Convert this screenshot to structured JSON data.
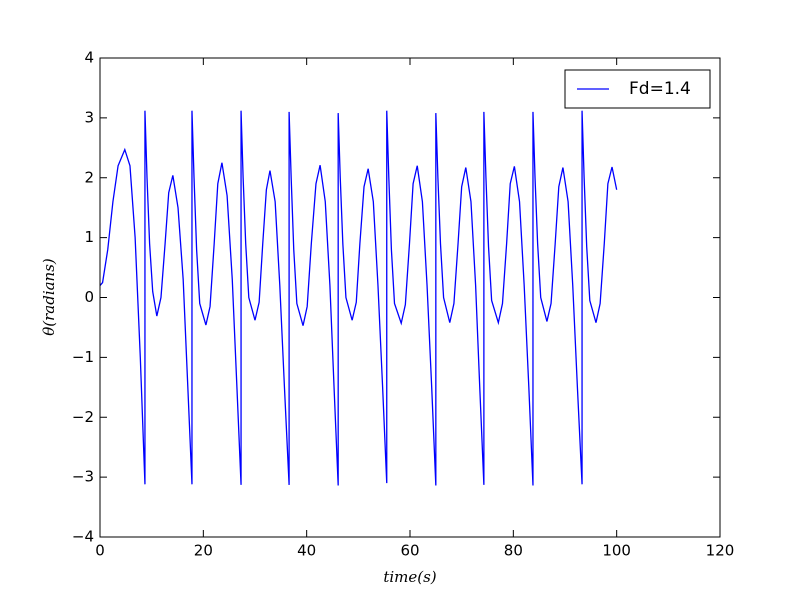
{
  "chart_data": {
    "type": "line",
    "xlabel": "time(s)",
    "ylabel": "θ(radians)",
    "x": [
      0,
      0.5,
      1.5,
      2.5,
      3.5,
      4.8,
      5.8,
      6.8,
      7.8,
      8.7,
      8.7,
      9.1,
      9.6,
      10.2,
      11.0,
      11.8,
      12.6,
      13.3,
      14.1,
      15.1,
      16.1,
      17.0,
      17.8,
      17.8,
      18.2,
      18.7,
      19.3,
      20.5,
      21.3,
      22.1,
      22.8,
      23.6,
      24.6,
      25.6,
      26.5,
      27.3,
      27.3,
      27.7,
      28.2,
      28.8,
      30.0,
      30.8,
      31.5,
      32.2,
      32.9,
      33.9,
      34.8,
      35.7,
      36.6,
      36.6,
      37.0,
      37.5,
      38.1,
      39.3,
      40.1,
      40.9,
      41.8,
      42.6,
      43.6,
      44.5,
      45.3,
      46.1,
      46.1,
      46.5,
      47.0,
      47.6,
      48.8,
      49.6,
      50.3,
      51.1,
      51.9,
      52.9,
      53.8,
      54.7,
      55.5,
      55.5,
      55.9,
      56.4,
      57.0,
      58.3,
      59.1,
      59.9,
      60.6,
      61.4,
      62.4,
      63.3,
      64.2,
      65.0,
      65.0,
      65.4,
      65.9,
      66.5,
      67.7,
      68.5,
      69.3,
      70.0,
      70.8,
      71.8,
      72.7,
      73.5,
      74.3,
      74.3,
      74.7,
      75.2,
      75.8,
      77.1,
      77.9,
      78.7,
      79.4,
      80.2,
      81.2,
      82.1,
      83.0,
      83.8,
      83.8,
      84.2,
      84.7,
      85.3,
      86.5,
      87.3,
      88.1,
      88.8,
      89.6,
      90.6,
      91.5,
      92.4,
      93.3,
      93.3,
      93.7,
      94.2,
      94.8,
      96.0,
      96.8,
      97.6,
      98.3,
      99.1,
      100
    ],
    "series": [
      {
        "name": "Fd=1.4",
        "color": "#0000ff",
        "values": [
          0.2,
          0.25,
          0.8,
          1.6,
          2.2,
          2.47,
          2.2,
          1.0,
          -1.0,
          -3.12,
          3.12,
          2.0,
          0.9,
          0.1,
          -0.31,
          0.0,
          0.9,
          1.75,
          2.04,
          1.5,
          0.3,
          -1.5,
          -3.12,
          3.12,
          2.0,
          0.8,
          -0.1,
          -0.46,
          -0.15,
          0.9,
          1.9,
          2.25,
          1.7,
          0.3,
          -1.5,
          -3.13,
          3.12,
          2.0,
          0.9,
          0.0,
          -0.38,
          -0.08,
          0.9,
          1.8,
          2.12,
          1.6,
          0.2,
          -1.5,
          -3.13,
          3.1,
          2.0,
          0.8,
          -0.1,
          -0.47,
          -0.15,
          0.9,
          1.9,
          2.21,
          1.6,
          0.2,
          -1.5,
          -3.14,
          3.08,
          2.0,
          0.9,
          0.0,
          -0.38,
          -0.08,
          0.9,
          1.85,
          2.15,
          1.6,
          0.2,
          -1.5,
          -3.1,
          3.12,
          2.0,
          0.8,
          -0.1,
          -0.43,
          -0.12,
          0.9,
          1.9,
          2.2,
          1.6,
          0.2,
          -1.5,
          -3.14,
          3.08,
          2.0,
          0.9,
          0.0,
          -0.42,
          -0.1,
          0.9,
          1.85,
          2.17,
          1.6,
          0.2,
          -1.5,
          -3.13,
          3.1,
          2.0,
          0.85,
          -0.05,
          -0.42,
          -0.1,
          0.9,
          1.9,
          2.19,
          1.6,
          0.2,
          -1.5,
          -3.14,
          3.1,
          2.0,
          0.9,
          0.0,
          -0.4,
          -0.1,
          0.9,
          1.85,
          2.17,
          1.6,
          0.2,
          -1.5,
          -3.12,
          3.12,
          2.0,
          0.85,
          -0.05,
          -0.42,
          -0.1,
          0.9,
          1.9,
          2.18,
          1.8
        ]
      }
    ],
    "xlim": [
      0,
      120
    ],
    "xticks": [
      0,
      20,
      40,
      60,
      80,
      100,
      120
    ],
    "ylim": [
      -4,
      4
    ],
    "yticks": [
      {
        "value": -4,
        "label": "−4"
      },
      {
        "value": -3,
        "label": "−3"
      },
      {
        "value": -2,
        "label": "−2"
      },
      {
        "value": -1,
        "label": "−1"
      },
      0,
      1,
      2,
      3,
      4
    ],
    "legend": "upper right",
    "grid": false
  }
}
